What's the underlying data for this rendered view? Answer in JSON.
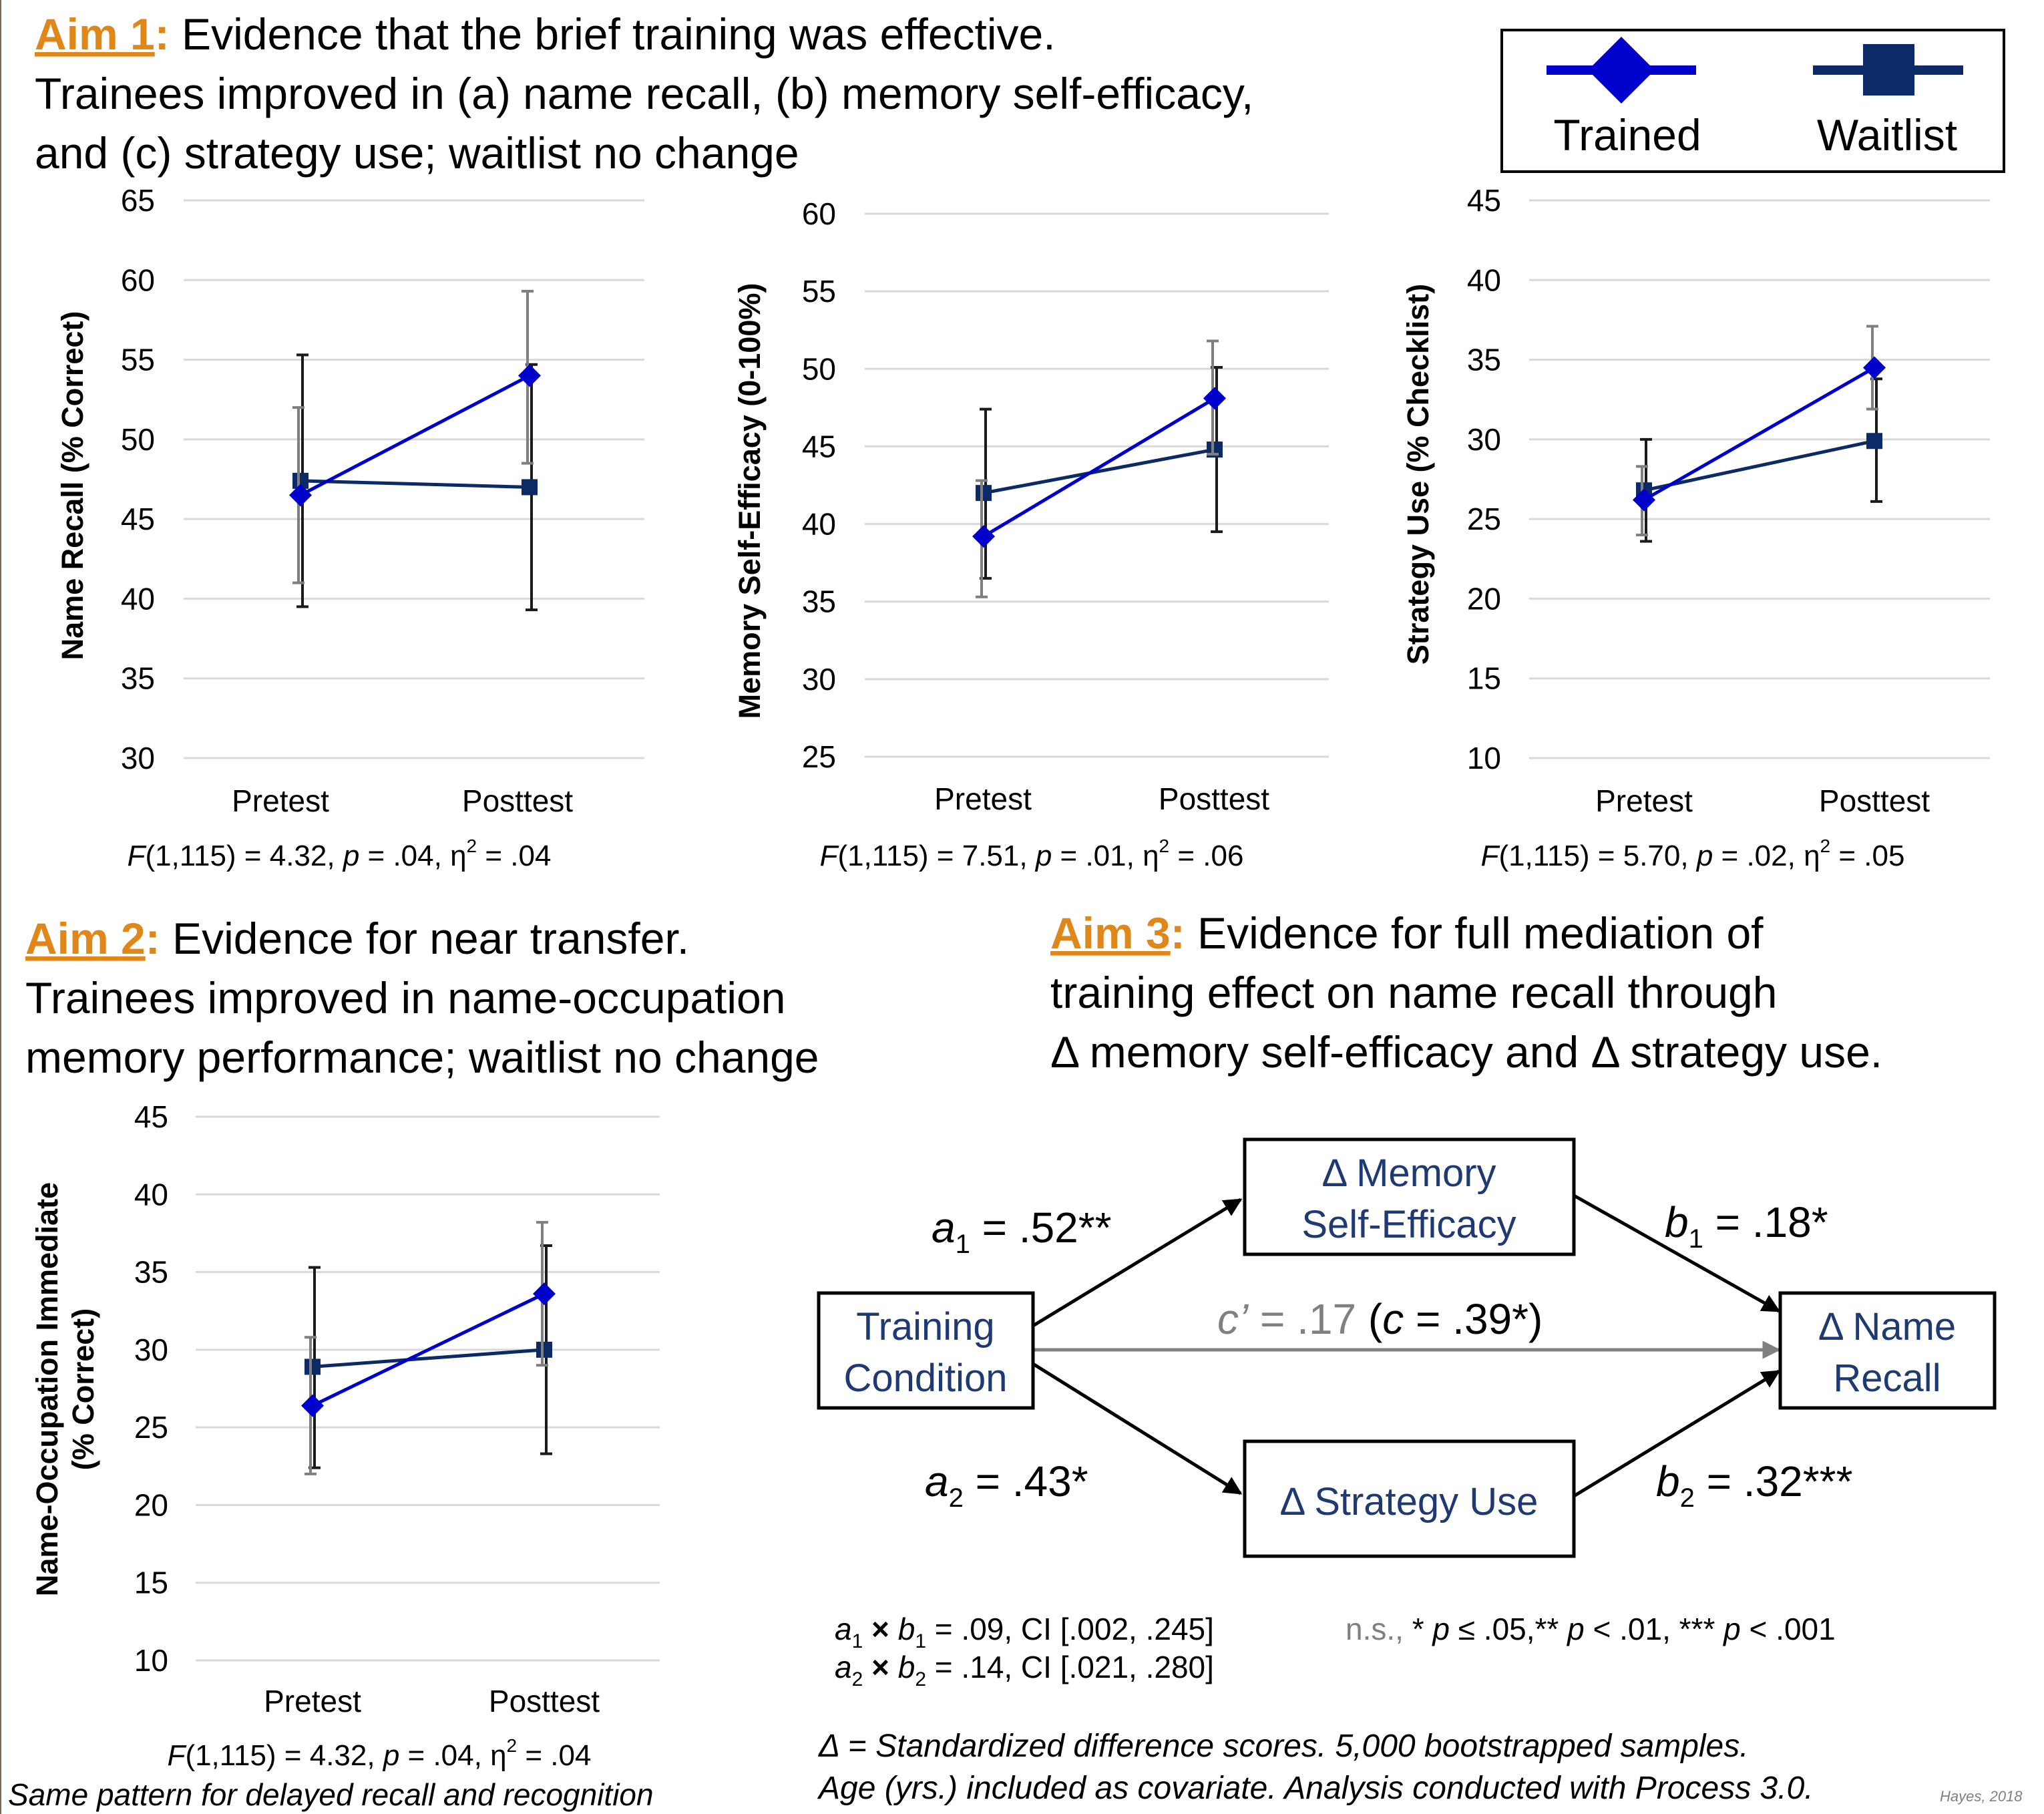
{
  "colors": {
    "trained": "#0000cc",
    "waitlist": "#0c2a66",
    "aim_label": "#e0871a",
    "diagram_text": "#1f3a73",
    "grid": "#d9d9d9",
    "errorbar_light": "#7f7f7f",
    "muted": "#808080"
  },
  "legend": {
    "trained": "Trained",
    "waitlist": "Waitlist"
  },
  "aims": {
    "aim1": {
      "label": "Aim 1",
      "colon": ":",
      "line1": " Evidence that the brief training was effective.",
      "line2": "Trainees improved in (a) name recall, (b) memory self-efficacy,",
      "line3": "and (c) strategy use; waitlist no change"
    },
    "aim2": {
      "label": "Aim 2",
      "colon": ":",
      "line1": " Evidence for near transfer.",
      "line2": "Trainees improved in name-occupation",
      "line3": "memory performance; waitlist no change"
    },
    "aim3": {
      "label": "Aim 3",
      "colon": ":",
      "line1": " Evidence for full mediation of",
      "line2": "training effect on name recall through",
      "line3": "Δ memory self-efficacy and Δ strategy use."
    }
  },
  "chart_data": [
    {
      "type": "line",
      "ylabel": "Name Recall (% Correct)",
      "categories": [
        "Pretest",
        "Posttest"
      ],
      "ylim": [
        30,
        65
      ],
      "yticks": [
        "30",
        "35",
        "40",
        "45",
        "50",
        "55",
        "60",
        "65"
      ],
      "grid": true,
      "series": [
        {
          "name": "Trained",
          "values": [
            46.5,
            54.0
          ],
          "err_low": [
            41.0,
            48.5
          ],
          "err_high": [
            52.0,
            59.3
          ]
        },
        {
          "name": "Waitlist",
          "values": [
            47.4,
            47.0
          ],
          "err_low": [
            39.5,
            39.3
          ],
          "err_high": [
            55.3,
            54.7
          ]
        }
      ],
      "stat": {
        "F": "F",
        "rest1": "(1,115) = 4.32, ",
        "p": "p",
        "rest2": " = .04, η",
        "sup": "2",
        "rest3": " = .04"
      }
    },
    {
      "type": "line",
      "ylabel": "Memory Self-Efficacy (0-100%)",
      "categories": [
        "Pretest",
        "Posttest"
      ],
      "ylim": [
        25,
        60
      ],
      "yticks": [
        "25",
        "30",
        "35",
        "40",
        "45",
        "50",
        "55",
        "60"
      ],
      "grid": true,
      "series": [
        {
          "name": "Trained",
          "values": [
            39.2,
            48.1
          ],
          "err_low": [
            35.3,
            44.5
          ],
          "err_high": [
            42.8,
            51.8
          ]
        },
        {
          "name": "Waitlist",
          "values": [
            42.0,
            44.8
          ],
          "err_low": [
            36.5,
            39.5
          ],
          "err_high": [
            47.4,
            50.1
          ]
        }
      ],
      "stat": {
        "F": "F",
        "rest1": "(1,115) = 7.51, ",
        "p": "p",
        "rest2": " = .01, η",
        "sup": "2",
        "rest3": " = .06"
      }
    },
    {
      "type": "line",
      "ylabel": "Strategy Use (% Checklist)",
      "categories": [
        "Pretest",
        "Posttest"
      ],
      "ylim": [
        10,
        45
      ],
      "yticks": [
        "10",
        "15",
        "20",
        "25",
        "30",
        "35",
        "40",
        "45"
      ],
      "grid": true,
      "series": [
        {
          "name": "Trained",
          "values": [
            26.2,
            34.5
          ],
          "err_low": [
            24.0,
            31.9
          ],
          "err_high": [
            28.3,
            37.1
          ]
        },
        {
          "name": "Waitlist",
          "values": [
            26.8,
            29.9
          ],
          "err_low": [
            23.6,
            26.1
          ],
          "err_high": [
            30.0,
            33.8
          ]
        }
      ],
      "stat": {
        "F": "F",
        "rest1": "(1,115) = 5.70, ",
        "p": "p",
        "rest2": " = .02, η",
        "sup": "2",
        "rest3": " = .05"
      }
    },
    {
      "type": "line",
      "ylabel_line1": "Name-Occupation Immediate",
      "ylabel_line2": "(% Correct)",
      "categories": [
        "Pretest",
        "Posttest"
      ],
      "ylim": [
        10,
        45
      ],
      "yticks": [
        "10",
        "15",
        "20",
        "25",
        "30",
        "35",
        "40",
        "45"
      ],
      "grid": true,
      "series": [
        {
          "name": "Trained",
          "values": [
            26.4,
            33.6
          ],
          "err_low": [
            22.0,
            29.0
          ],
          "err_high": [
            30.8,
            38.2
          ]
        },
        {
          "name": "Waitlist",
          "values": [
            28.9,
            30.0
          ],
          "err_low": [
            22.4,
            23.3
          ],
          "err_high": [
            35.3,
            36.7
          ]
        }
      ],
      "stat": {
        "F": "F",
        "rest1": "(1,115) = 4.32, ",
        "p": "p",
        "rest2": " = .04, η",
        "sup": "2",
        "rest3": " = .04"
      },
      "note": "Same pattern for delayed recall and recognition"
    }
  ],
  "diagram": {
    "training_l1": "Training",
    "training_l2": "Condition",
    "mse_l1": "Δ Memory",
    "mse_l2": "Self-Efficacy",
    "strategy": "Δ Strategy Use",
    "recall_l1": "Δ Name",
    "recall_l2": "Recall",
    "a1_var": "a",
    "a1_sub": "1",
    "a1_val": " = .52**",
    "a2_var": "a",
    "a2_sub": "2",
    "a2_val": " = .43*",
    "b1_var": "b",
    "b1_sub": "1",
    "b1_val": " = .18*",
    "b2_var": "b",
    "b2_sub": "2",
    "b2_val": " = .32***",
    "c_prime_var": "c’",
    "c_prime_val": " = .17 ",
    "c_total_open": "(",
    "c_total_var": "c",
    "c_total_val": " = .39*)"
  },
  "indirect": {
    "row1": {
      "a": "a",
      "a_sub": "1",
      "x": " × ",
      "b": "b",
      "b_sub": "1",
      "rest": " = .09, CI [.002, .245]"
    },
    "row2": {
      "a": "a",
      "a_sub": "2",
      "x": " × ",
      "b": "b",
      "b_sub": "2",
      "rest": " = .14, CI [.021, .280]"
    }
  },
  "sig_key": {
    "ns": "n.s.,",
    "s1": "  * ",
    "p1": "p",
    "s2": " ≤ .05,** ",
    "p2": "p",
    "s3": " < .01, *** ",
    "p3": "p",
    "s4": " < .001"
  },
  "footnotes": {
    "line1": "Δ = Standardized difference scores. 5,000 bootstrapped samples.",
    "line2": "Age (yrs.) included as  covariate. Analysis conducted with Process 3.0.",
    "credit": "Hayes, 2018"
  }
}
